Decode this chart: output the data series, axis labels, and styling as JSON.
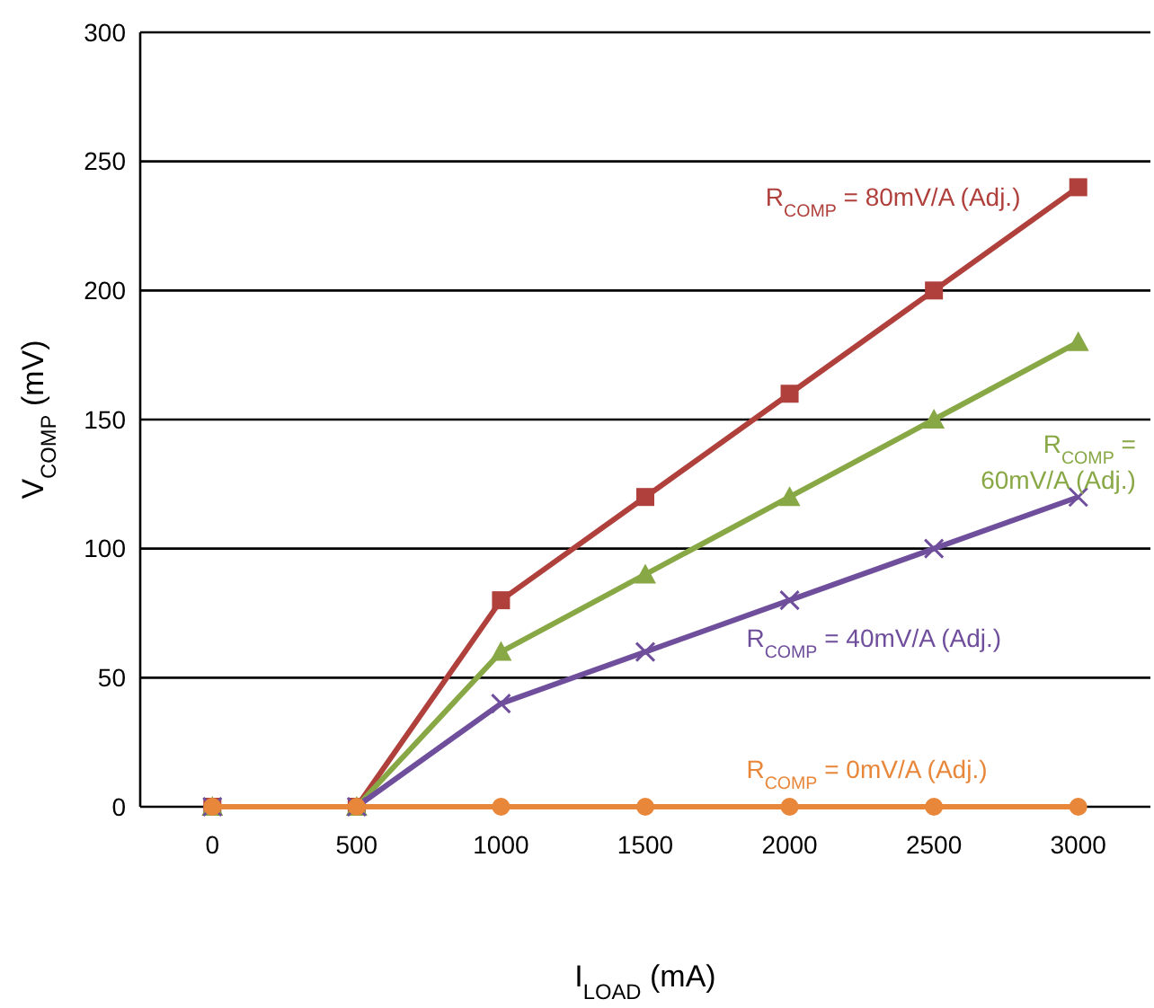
{
  "chart_data": {
    "type": "line",
    "xlabel": "I$_{LOAD}$ (mA)",
    "ylabel": "V$_{COMP}$ (mV)",
    "categories": [
      "0",
      "500",
      "1000",
      "1500",
      "2000",
      "2500",
      "3000"
    ],
    "ylim": [
      0,
      300
    ],
    "yticks": [
      0,
      50,
      100,
      150,
      200,
      250,
      300
    ],
    "grid": "y",
    "line_style": "solid",
    "series": [
      {
        "name": "R$_{COMP}$ = 80mV/A (Adj.)",
        "color": "#b0403c",
        "marker": "square",
        "values": [
          0,
          0,
          80,
          120,
          160,
          200,
          240
        ]
      },
      {
        "name": "R$_{COMP}$ = 60mV/A (Adj.)",
        "color": "#88a846",
        "marker": "triangle",
        "values": [
          0,
          0,
          60,
          90,
          120,
          150,
          180
        ]
      },
      {
        "name": "R$_{COMP}$ = 40mV/A (Adj.)",
        "color": "#6f4e9c",
        "marker": "cross",
        "values": [
          0,
          0,
          40,
          60,
          80,
          100,
          120
        ]
      },
      {
        "name": "R$_{COMP}$ = 0mV/A (Adj.)",
        "color": "#e8873a",
        "marker": "circle",
        "values": [
          0,
          0,
          0,
          0,
          0,
          0,
          0
        ]
      }
    ]
  }
}
